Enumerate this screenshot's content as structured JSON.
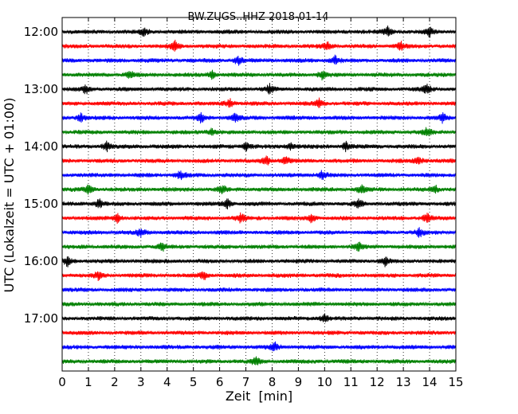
{
  "chart_data": {
    "type": "line",
    "title": "BW.ZUGS..HHZ 2018-01-14",
    "xlabel": "Zeit  [min]",
    "ylabel": "UTC (Lokalzeit = UTC + 01:00)",
    "xlim": [
      0,
      15
    ],
    "x_ticks": [
      "0",
      "1",
      "2",
      "3",
      "4",
      "5",
      "6",
      "7",
      "8",
      "9",
      "10",
      "11",
      "12",
      "13",
      "14",
      "15"
    ],
    "y_ticks": [
      "12:00",
      "13:00",
      "14:00",
      "15:00",
      "16:00",
      "17:00"
    ],
    "grid": {
      "x": "dotted",
      "y": false
    },
    "colors": [
      "#000000",
      "#ff0000",
      "#0000ff",
      "#008000"
    ],
    "series": [
      {
        "start": "12:00",
        "color": "#000000",
        "spikes": [
          3.1,
          12.4,
          14.0
        ]
      },
      {
        "start": "12:15",
        "color": "#ff0000",
        "spikes": [
          4.3,
          10.1,
          12.9
        ]
      },
      {
        "start": "12:30",
        "color": "#0000ff",
        "spikes": [
          6.7,
          10.4
        ]
      },
      {
        "start": "12:45",
        "color": "#008000",
        "spikes": [
          2.6,
          5.7,
          9.9
        ]
      },
      {
        "start": "13:00",
        "color": "#000000",
        "spikes": [
          0.9,
          7.9,
          13.9
        ]
      },
      {
        "start": "13:15",
        "color": "#ff0000",
        "spikes": [
          6.4,
          9.8
        ]
      },
      {
        "start": "13:30",
        "color": "#0000ff",
        "spikes": [
          0.7,
          5.3,
          6.6,
          14.5
        ]
      },
      {
        "start": "13:45",
        "color": "#008000",
        "spikes": [
          5.7,
          13.9
        ]
      },
      {
        "start": "14:00",
        "color": "#000000",
        "spikes": [
          1.7,
          7.0,
          8.7,
          10.8
        ]
      },
      {
        "start": "14:15",
        "color": "#ff0000",
        "spikes": [
          7.8,
          8.5,
          13.6
        ]
      },
      {
        "start": "14:30",
        "color": "#0000ff",
        "spikes": [
          4.5,
          9.9
        ]
      },
      {
        "start": "14:45",
        "color": "#008000",
        "spikes": [
          1.0,
          6.1,
          11.4,
          14.2
        ]
      },
      {
        "start": "15:00",
        "color": "#000000",
        "spikes": [
          1.4,
          6.3,
          11.3
        ]
      },
      {
        "start": "15:15",
        "color": "#ff0000",
        "spikes": [
          2.1,
          6.8,
          9.5,
          13.9
        ]
      },
      {
        "start": "15:30",
        "color": "#0000ff",
        "spikes": [
          3.0,
          13.6
        ]
      },
      {
        "start": "15:45",
        "color": "#008000",
        "spikes": [
          3.8,
          11.3
        ]
      },
      {
        "start": "16:00",
        "color": "#000000",
        "spikes": [
          0.2,
          12.3
        ]
      },
      {
        "start": "16:15",
        "color": "#ff0000",
        "spikes": [
          1.4,
          5.4
        ]
      },
      {
        "start": "16:30",
        "color": "#0000ff",
        "spikes": []
      },
      {
        "start": "16:45",
        "color": "#008000",
        "spikes": []
      },
      {
        "start": "17:00",
        "color": "#000000",
        "spikes": [
          10.0
        ]
      },
      {
        "start": "17:15",
        "color": "#ff0000",
        "spikes": []
      },
      {
        "start": "17:30",
        "color": "#0000ff",
        "spikes": [
          8.1
        ]
      },
      {
        "start": "17:45",
        "color": "#008000",
        "spikes": [
          7.4
        ]
      }
    ]
  }
}
